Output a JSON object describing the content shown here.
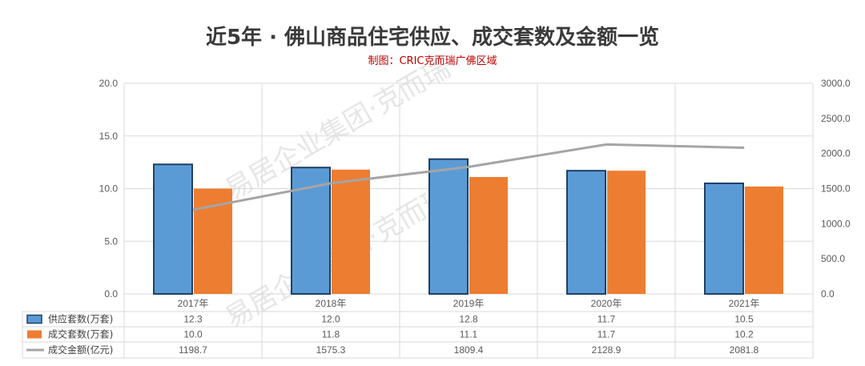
{
  "title": "近5年 · 佛山商品住宅供应、成交套数及金额一览",
  "subtitle": "制图：CRIC克而瑞广佛区域",
  "watermark": "易居企业集团·克而瑞",
  "chart_data": {
    "type": "bar",
    "categories": [
      "2017年",
      "2018年",
      "2019年",
      "2020年",
      "2021年"
    ],
    "series": [
      {
        "name": "供应套数(万套)",
        "type": "bar",
        "axis": "left",
        "color": "#5b9bd5",
        "border": "#1f3f66",
        "values": [
          12.3,
          12.0,
          12.8,
          11.7,
          10.5
        ]
      },
      {
        "name": "成交套数(万套)",
        "type": "bar",
        "axis": "left",
        "color": "#ed7d31",
        "values": [
          10.0,
          11.8,
          11.1,
          11.7,
          10.2
        ]
      },
      {
        "name": "成交金额(亿元)",
        "type": "line",
        "axis": "right",
        "color": "#a5a5a5",
        "values": [
          1198.7,
          1575.3,
          1809.4,
          2128.9,
          2081.8
        ]
      }
    ],
    "left_axis": {
      "min": 0,
      "max": 20,
      "ticks": [
        "0.0",
        "5.0",
        "10.0",
        "15.0",
        "20.0"
      ]
    },
    "right_axis": {
      "min": 0,
      "max": 3000,
      "ticks": [
        "0.0",
        "500.0",
        "1000.0",
        "1500.0",
        "2000.0",
        "2500.0",
        "3000.0"
      ]
    },
    "data_table": [
      [
        "12.3",
        "12.0",
        "12.8",
        "11.7",
        "10.5"
      ],
      [
        "10.0",
        "11.8",
        "11.1",
        "11.7",
        "10.2"
      ],
      [
        "1198.7",
        "1575.3",
        "1809.4",
        "2128.9",
        "2081.8"
      ]
    ],
    "grid": true,
    "legend": "data-table"
  }
}
